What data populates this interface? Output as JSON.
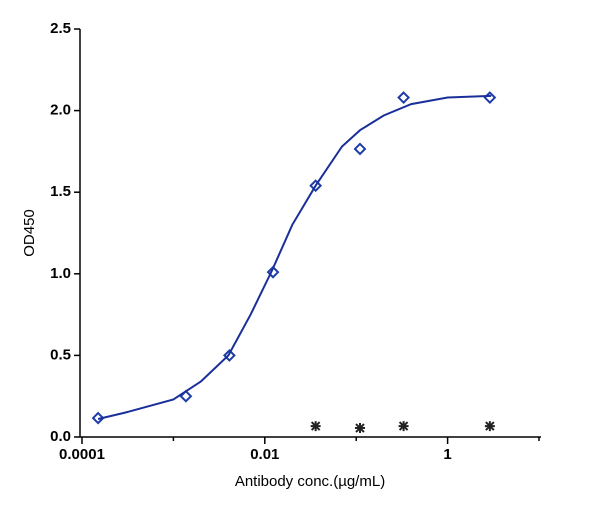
{
  "chart_data": {
    "type": "scatter",
    "x_label": "Antibody conc.(µg/mL)",
    "y_label": "OD450",
    "xscale": "log",
    "xlim": [
      0.0001,
      10
    ],
    "xticks": [
      0.0001,
      0.01,
      1
    ],
    "xminorticks": [
      0.001,
      0.1,
      10
    ],
    "ylim": [
      0,
      2.5
    ],
    "yticks": [
      {
        "value": 0,
        "label": "0.0"
      },
      0.5,
      {
        "value": 1,
        "label": "1.0"
      },
      1.5,
      {
        "value": 2,
        "label": "2.0"
      },
      2.5
    ],
    "series": [
      {
        "marker": "diamond",
        "color": "#1e3ca8",
        "x": [
          0.00015,
          0.00137,
          0.0041,
          0.0123,
          0.036,
          0.11,
          0.33,
          2.9
        ],
        "values": [
          0.116,
          0.25,
          0.5,
          1.01,
          1.54,
          1.765,
          2.08,
          2.08
        ]
      },
      {
        "marker": "asterisk",
        "color": "#222222",
        "x": [
          0.036,
          0.11,
          0.33,
          2.9
        ],
        "values": [
          0.067,
          0.055,
          0.067,
          0.067
        ]
      },
      {
        "marker": "line",
        "color": "#1a2f9a",
        "x": [
          0.00015,
          0.0003,
          0.001,
          0.002,
          0.004,
          0.007,
          0.012,
          0.02,
          0.036,
          0.07,
          0.11,
          0.2,
          0.4,
          1,
          3
        ],
        "values": [
          0.11,
          0.15,
          0.23,
          0.34,
          0.5,
          0.75,
          1.02,
          1.3,
          1.54,
          1.78,
          1.88,
          1.97,
          2.04,
          2.08,
          2.09
        ]
      }
    ]
  }
}
